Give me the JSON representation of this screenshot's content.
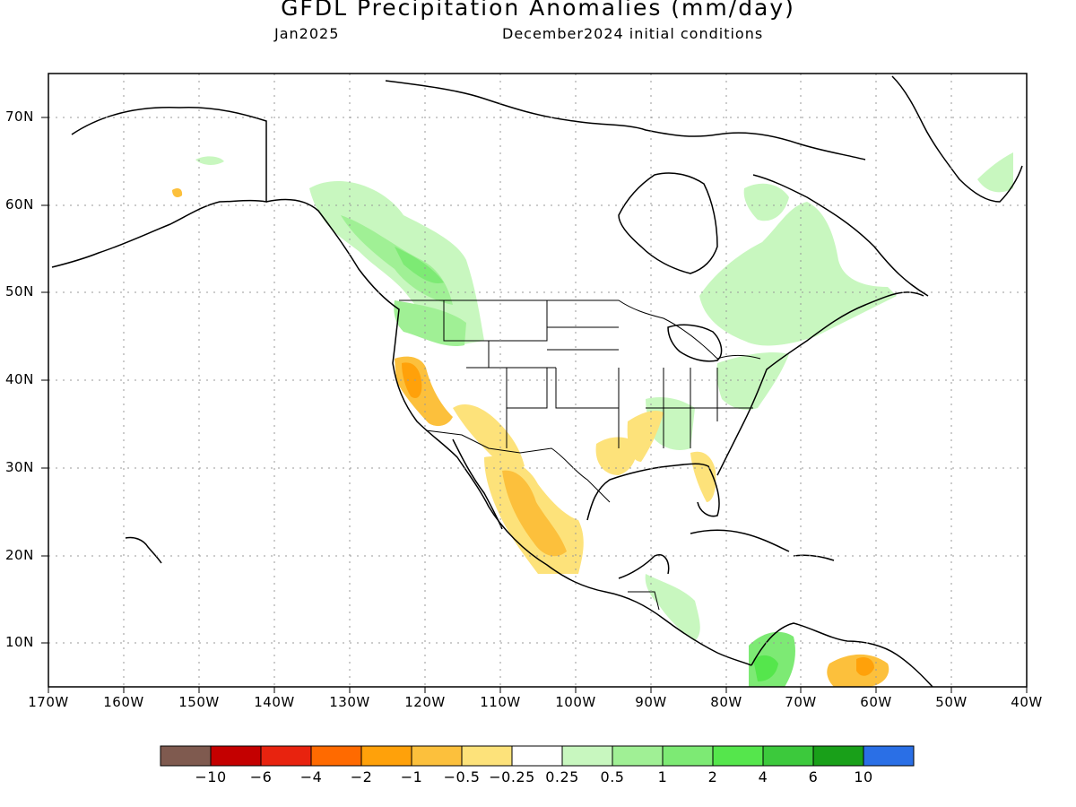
{
  "header": {
    "title": "GFDL Precipitation Anomalies (mm/day)",
    "valid_month": "Jan2025",
    "initial_conditions": "December2024 initial conditions"
  },
  "axes": {
    "lat_labels": [
      "70N",
      "60N",
      "50N",
      "40N",
      "30N",
      "20N",
      "10N"
    ],
    "lon_labels": [
      "170W",
      "160W",
      "150W",
      "140W",
      "130W",
      "120W",
      "110W",
      "100W",
      "90W",
      "80W",
      "70W",
      "60W",
      "50W",
      "40W"
    ]
  },
  "colorbar": {
    "colors": [
      "#7f5a4f",
      "#c40000",
      "#e8230f",
      "#ff6a00",
      "#ffa10a",
      "#fcc03c",
      "#fde27a",
      "#ffffff",
      "#c8f7bf",
      "#a0f095",
      "#7dea74",
      "#55e64c",
      "#3cc93c",
      "#19a019",
      "#2a6fe6"
    ],
    "labels": [
      "−10",
      "−6",
      "−4",
      "−2",
      "−1",
      "−0.5",
      "−0.25",
      "0.25",
      "0.5",
      "1",
      "2",
      "4",
      "6",
      "10"
    ]
  },
  "legend_colors": {
    "dry_light": "#fde27a",
    "dry_moderate": "#fcc03c",
    "dry_strong": "#ffa10a",
    "wet_light": "#c8f7bf",
    "wet_moderate": "#a0f095",
    "wet_strong": "#7dea74",
    "wet_heavy": "#55e64c"
  }
}
